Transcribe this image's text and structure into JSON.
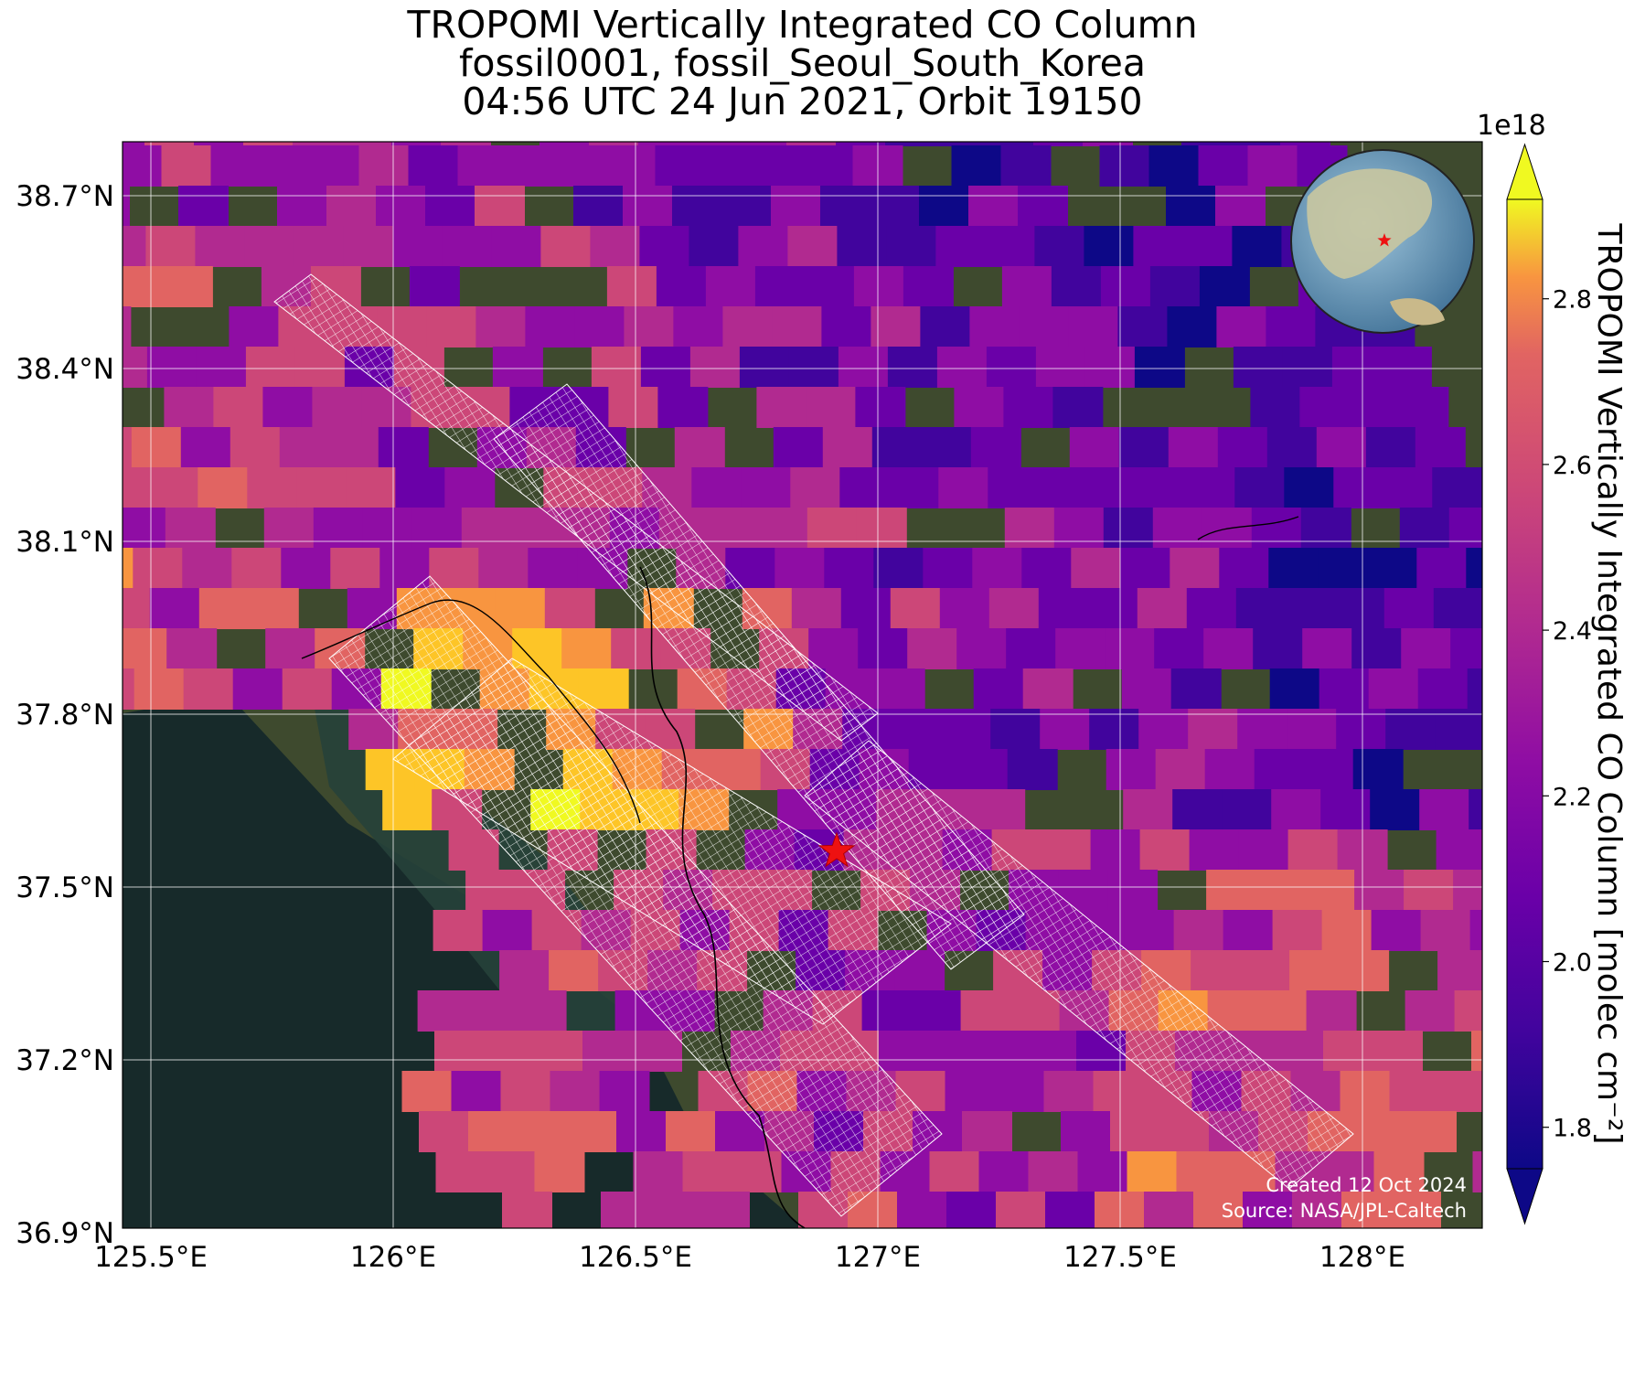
{
  "title": {
    "line1": "TROPOMI Vertically Integrated CO Column",
    "line2": "fossil0001, fossil_Seoul_South_Korea",
    "line3": "04:56 UTC 24 Jun 2021, Orbit 19150"
  },
  "map": {
    "lat_ticks": [
      "38.7°N",
      "38.4°N",
      "38.1°N",
      "37.8°N",
      "37.5°N",
      "37.2°N",
      "36.9°N"
    ],
    "lon_ticks": [
      "125.5°E",
      "126°E",
      "126.5°E",
      "127°E",
      "127.5°E",
      "128°E"
    ],
    "target_marker": "red-star",
    "inset": "globe-locator",
    "credit_line1": "Created 12 Oct 2024",
    "credit_line2": "Source: NASA/JPL-Caltech"
  },
  "colorbar": {
    "multiplier": "1e18",
    "label": "TROPOMI Vertically Integrated CO Column [molec cm⁻²]",
    "ticks": [
      "1.8",
      "2.0",
      "2.2",
      "2.4",
      "2.6",
      "2.8"
    ],
    "colormap": "plasma",
    "range": [
      1.75,
      2.92
    ]
  }
}
